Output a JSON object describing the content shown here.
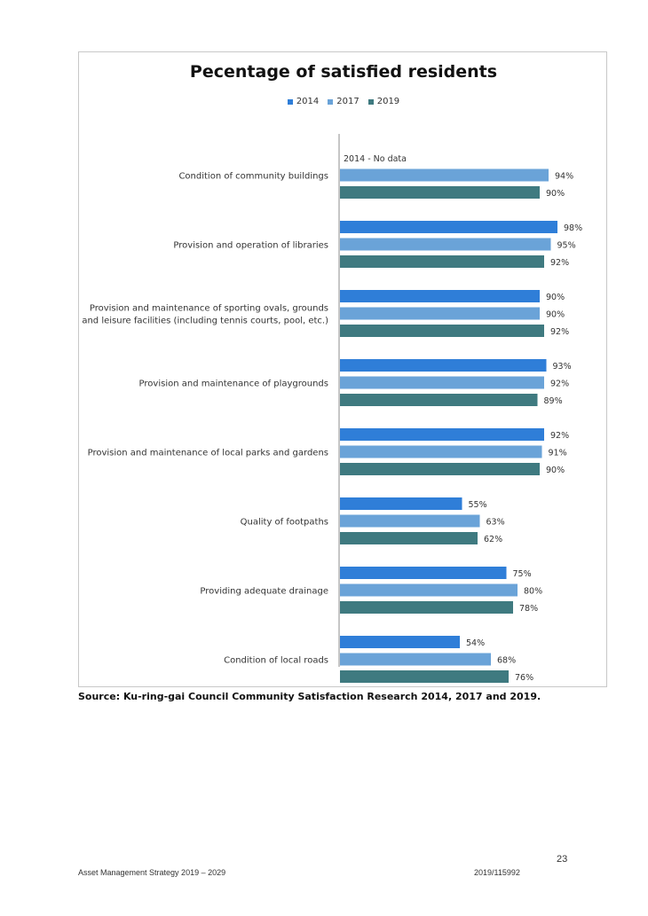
{
  "chart_data": {
    "type": "bar",
    "orientation": "horizontal",
    "title": "Pecentage of satisfied residents",
    "xlim": [
      0,
      100
    ],
    "legend_position": "top",
    "grid": false,
    "categories": [
      "Condition of community buildings",
      "Provision and operation of libraries",
      "Provision and maintenance of sporting ovals, grounds and leisure facilities (including tennis courts, pool, etc.)",
      "Provision and maintenance of playgrounds",
      "Provision and maintenance of local parks and gardens",
      "Quality of footpaths",
      "Providing adequate drainage",
      "Condition of local roads"
    ],
    "category_lines": [
      [
        "Condition of community buildings"
      ],
      [
        "Provision and operation of libraries"
      ],
      [
        "Provision and maintenance of sporting ovals, grounds",
        "and leisure facilities (including tennis courts, pool, etc.)"
      ],
      [
        "Provision and maintenance of playgrounds"
      ],
      [
        "Provision and maintenance of local parks and gardens"
      ],
      [
        "Quality of footpaths"
      ],
      [
        "Providing adequate drainage"
      ],
      [
        "Condition of local roads"
      ]
    ],
    "series": [
      {
        "name": "2014",
        "color": "#2f7ed8",
        "values": [
          null,
          98,
          90,
          93,
          92,
          55,
          75,
          54
        ],
        "labels": [
          "2014 - No data",
          "98%",
          "90%",
          "93%",
          "92%",
          "55%",
          "75%",
          "54%"
        ]
      },
      {
        "name": "2017",
        "color": "#6aa3d8",
        "values": [
          94,
          95,
          90,
          92,
          91,
          63,
          80,
          68
        ],
        "labels": [
          "94%",
          "95%",
          "90%",
          "92%",
          "91%",
          "63%",
          "80%",
          "68%"
        ]
      },
      {
        "name": "2019",
        "color": "#3f7a80",
        "values": [
          90,
          92,
          92,
          89,
          90,
          62,
          78,
          76
        ],
        "labels": [
          "90%",
          "92%",
          "92%",
          "89%",
          "90%",
          "62%",
          "78%",
          "76%"
        ]
      }
    ]
  },
  "source_note": "Source: Ku-ring-gai Council Community Satisfaction Research 2014, 2017 and 2019.",
  "footer": {
    "page_number": "23",
    "document_title": "Asset Management Strategy 2019 – 2029",
    "document_ref": "2019/115992"
  }
}
